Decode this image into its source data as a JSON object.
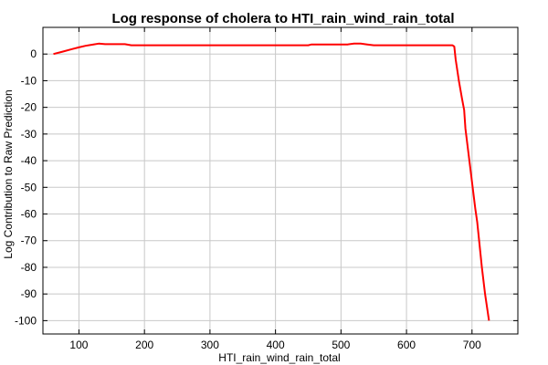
{
  "chart_data": {
    "type": "line",
    "title": "Log response of cholera to HTI_rain_wind_rain_total",
    "xlabel": "HTI_rain_wind_rain_total",
    "ylabel": "Log Contribution to Raw Prediction",
    "xlim": [
      45,
      770
    ],
    "ylim": [
      -105,
      10
    ],
    "xticks": [
      100,
      200,
      300,
      400,
      500,
      600,
      700
    ],
    "yticks": [
      0,
      -10,
      -20,
      -30,
      -40,
      -50,
      -60,
      -70,
      -80,
      -90,
      -100
    ],
    "grid": true,
    "series_color": "#ff0000",
    "series": [
      {
        "x": [
          61,
          75,
          90,
          100,
          110,
          120,
          130,
          140,
          150,
          160,
          170,
          180,
          200,
          250,
          300,
          350,
          400,
          450,
          455,
          500,
          510,
          520,
          530,
          540,
          550,
          560,
          600,
          650,
          670,
          673,
          675,
          680,
          685,
          688,
          690,
          695,
          700,
          705,
          708,
          710,
          715,
          720,
          726
        ],
        "values": [
          0,
          0.9,
          1.9,
          2.5,
          3.1,
          3.5,
          3.9,
          3.7,
          3.7,
          3.7,
          3.7,
          3.3,
          3.3,
          3.3,
          3.3,
          3.3,
          3.3,
          3.3,
          3.6,
          3.6,
          3.6,
          3.9,
          3.9,
          3.6,
          3.3,
          3.3,
          3.3,
          3.3,
          3.3,
          2.8,
          -2,
          -10,
          -17,
          -21,
          -28,
          -38,
          -48,
          -58,
          -63,
          -68,
          -80,
          -90,
          -100
        ]
      }
    ]
  }
}
